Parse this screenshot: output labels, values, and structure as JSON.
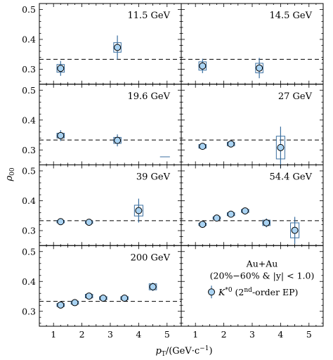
{
  "chart_data": {
    "type": "scatter",
    "layout": "4x2 grid of panels sharing x and y axes",
    "xlabel": {
      "main": "p",
      "sub": "T",
      "rest": "/(GeV·c",
      "sup": "−1",
      "close": ")"
    },
    "ylabel": {
      "main": "ρ",
      "sub": "00"
    },
    "xlim": [
      0.5,
      5.5
    ],
    "ylim": [
      0.25,
      0.52
    ],
    "x_ticks": [
      "1",
      "2",
      "3",
      "4",
      "5"
    ],
    "y_ticks": [
      "0.3",
      "0.4",
      "0.5"
    ],
    "y_tick_values": [
      0.3,
      0.4,
      0.5
    ],
    "x_tick_values": [
      1,
      2,
      3,
      4,
      5
    ],
    "reference_line": 0.3333,
    "marker_color": "#a9d3f3",
    "box_color": "#3a6fa0",
    "panels": [
      {
        "label": "11.5 GeV",
        "points": [
          {
            "x": 1.25,
            "y": 0.303,
            "stat": 0.025,
            "sys_half_w": 0.13,
            "sys": 0.013
          },
          {
            "x": 3.25,
            "y": 0.373,
            "stat": 0.04,
            "sys_half_w": 0.13,
            "sys": 0.016
          }
        ]
      },
      {
        "label": "14.5 GeV",
        "points": [
          {
            "x": 1.25,
            "y": 0.311,
            "stat": 0.024,
            "sys_half_w": 0.13,
            "sys": 0.014
          },
          {
            "x": 3.25,
            "y": 0.304,
            "stat": 0.034,
            "sys_half_w": 0.13,
            "sys": 0.016
          }
        ]
      },
      {
        "label": "19.6 GeV",
        "points": [
          {
            "x": 1.25,
            "y": 0.348,
            "stat": 0.018,
            "sys_half_w": 0.13,
            "sys": 0.008
          },
          {
            "x": 3.25,
            "y": 0.332,
            "stat": 0.02,
            "sys_half_w": 0.13,
            "sys": 0.01
          }
        ],
        "extra_segment": {
          "x0": 4.75,
          "x1": 5.1,
          "y": 0.277
        }
      },
      {
        "label": "27 GeV",
        "points": [
          {
            "x": 1.25,
            "y": 0.312,
            "stat": 0.009,
            "sys_half_w": 0.13,
            "sys": 0.006
          },
          {
            "x": 2.25,
            "y": 0.32,
            "stat": 0.01,
            "sys_half_w": 0.13,
            "sys": 0.006
          },
          {
            "x": 4.0,
            "y": 0.308,
            "stat": 0.07,
            "sys_half_w": 0.15,
            "sys": 0.038
          }
        ]
      },
      {
        "label": "39 GeV",
        "points": [
          {
            "x": 1.25,
            "y": 0.33,
            "stat": 0.006,
            "sys_half_w": 0.13,
            "sys": 0.004
          },
          {
            "x": 2.25,
            "y": 0.328,
            "stat": 0.007,
            "sys_half_w": 0.13,
            "sys": 0.004
          },
          {
            "x": 4.0,
            "y": 0.367,
            "stat": 0.04,
            "sys_half_w": 0.15,
            "sys": 0.018
          }
        ]
      },
      {
        "label": "54.4 GeV",
        "points": [
          {
            "x": 1.25,
            "y": 0.321,
            "stat": 0.006,
            "sys_half_w": 0.13,
            "sys": 0.004
          },
          {
            "x": 1.75,
            "y": 0.342,
            "stat": 0.005,
            "sys_half_w": 0.13,
            "sys": 0.004
          },
          {
            "x": 2.25,
            "y": 0.355,
            "stat": 0.005,
            "sys_half_w": 0.13,
            "sys": 0.005
          },
          {
            "x": 2.75,
            "y": 0.366,
            "stat": 0.006,
            "sys_half_w": 0.13,
            "sys": 0.005
          },
          {
            "x": 3.5,
            "y": 0.326,
            "stat": 0.015,
            "sys_half_w": 0.13,
            "sys": 0.009
          },
          {
            "x": 4.5,
            "y": 0.301,
            "stat": 0.045,
            "sys_half_w": 0.15,
            "sys": 0.025
          }
        ]
      },
      {
        "label": "200 GeV",
        "points": [
          {
            "x": 1.25,
            "y": 0.321,
            "stat": 0.005,
            "sys_half_w": 0.13,
            "sys": 0.005
          },
          {
            "x": 1.75,
            "y": 0.329,
            "stat": 0.005,
            "sys_half_w": 0.13,
            "sys": 0.005
          },
          {
            "x": 2.25,
            "y": 0.351,
            "stat": 0.006,
            "sys_half_w": 0.13,
            "sys": 0.006
          },
          {
            "x": 2.75,
            "y": 0.344,
            "stat": 0.006,
            "sys_half_w": 0.13,
            "sys": 0.005
          },
          {
            "x": 3.5,
            "y": 0.344,
            "stat": 0.008,
            "sys_half_w": 0.13,
            "sys": 0.005
          },
          {
            "x": 4.5,
            "y": 0.382,
            "stat": 0.014,
            "sys_half_w": 0.13,
            "sys": 0.01
          }
        ]
      },
      {
        "label": "",
        "legend": true,
        "points": []
      }
    ],
    "legend": {
      "line1": "Au+Au",
      "line2": "(20%−60% & |y| < 1.0)",
      "entry_main": "K",
      "entry_sup": "*0",
      "entry_open": " (2",
      "entry_sup2": "nd",
      "entry_rest": "-order EP)"
    }
  }
}
